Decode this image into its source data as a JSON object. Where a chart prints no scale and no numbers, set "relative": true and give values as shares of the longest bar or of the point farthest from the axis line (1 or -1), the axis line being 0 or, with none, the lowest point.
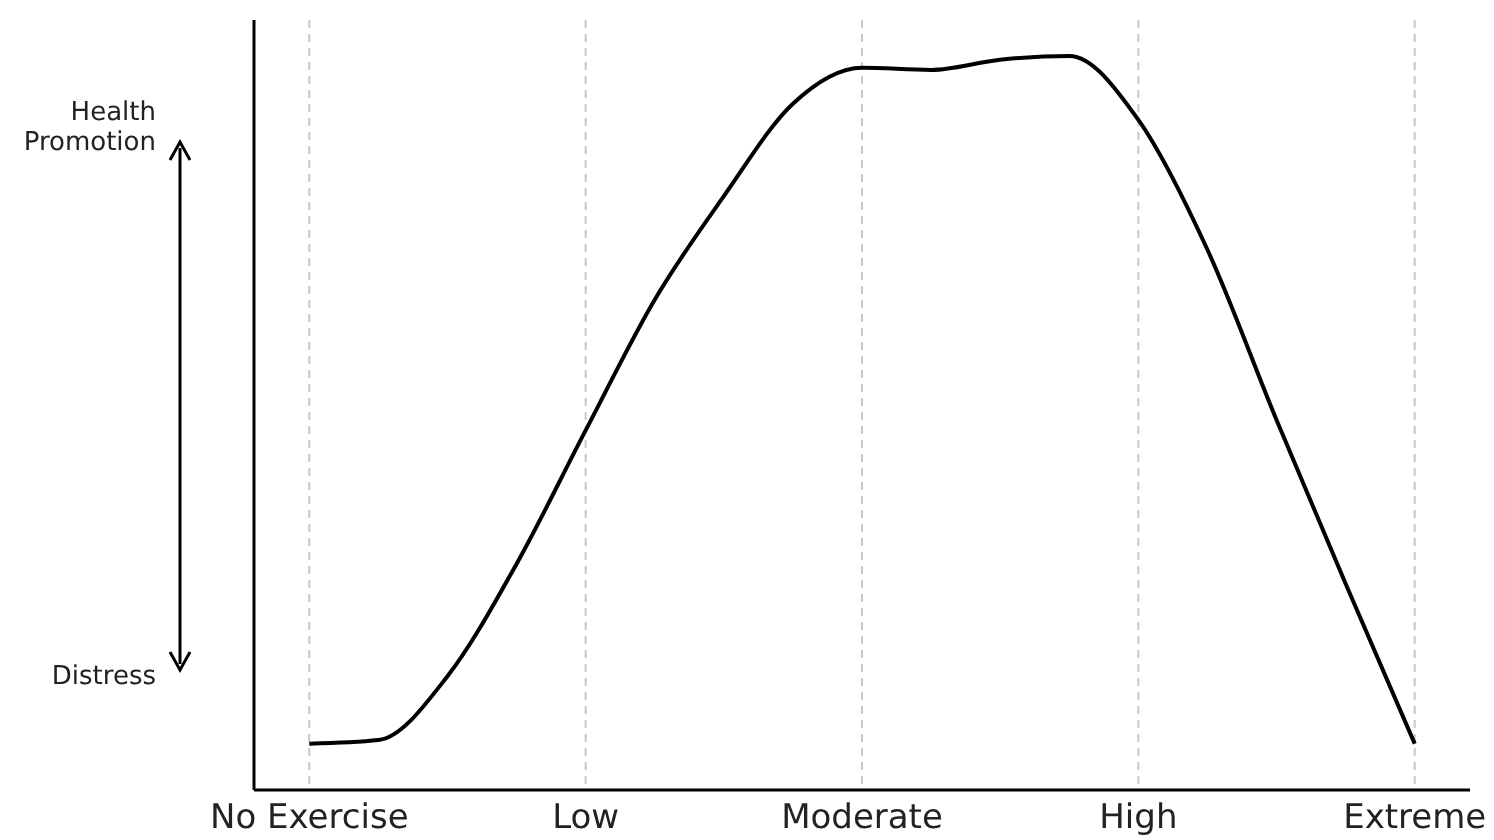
{
  "chart_data": {
    "type": "line",
    "relative": true,
    "categories": [
      "No Exercise",
      null,
      null,
      null,
      "Low",
      null,
      null,
      null,
      "Moderate",
      null,
      null,
      null,
      "High",
      null,
      null,
      null,
      "Extreme"
    ],
    "series": [
      {
        "color": "#000000",
        "values": [
          0.063,
          0.068,
          0.155,
          0.308,
          0.49,
          0.668,
          0.809,
          0.935,
          0.984,
          0.981,
          0.995,
          1,
          0.913,
          0.736,
          0.504,
          0.281,
          0.063
        ]
      }
    ],
    "grid": "x",
    "marker": "none",
    "line_style": "solid",
    "annotations": [
      "Health Promotion",
      "Distress"
    ]
  }
}
